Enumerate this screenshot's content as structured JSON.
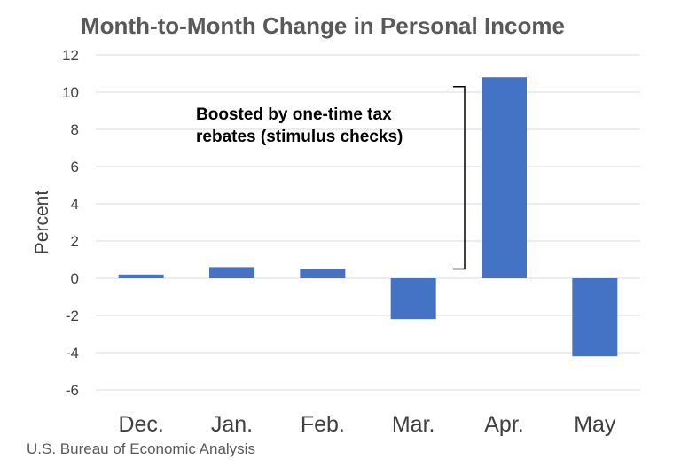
{
  "chart_data": {
    "type": "bar",
    "title": "Month-to-Month Change in Personal Income",
    "xlabel": "",
    "ylabel": "Percent",
    "categories": [
      "Dec.",
      "Jan.",
      "Feb.",
      "Mar.",
      "Apr.",
      "May"
    ],
    "values": [
      0.2,
      0.6,
      0.5,
      -2.2,
      10.8,
      -4.2
    ],
    "ylim": [
      -6,
      12
    ],
    "yticks": [
      12,
      10,
      8,
      6,
      4,
      2,
      0,
      -2,
      -4,
      -6
    ],
    "ytick_labels": [
      "12",
      "10",
      "8",
      "6",
      "4",
      "2",
      "0",
      "-2",
      "-4",
      "-6"
    ],
    "grid": true,
    "legend": "none",
    "bar_color": "#4472C4",
    "annotation": {
      "lines": [
        "Boosted by one-time tax",
        "rebates (stimulus checks)"
      ],
      "bracket_range": [
        0.5,
        10.3
      ]
    }
  },
  "source": "U.S. Bureau of Economic Analysis"
}
